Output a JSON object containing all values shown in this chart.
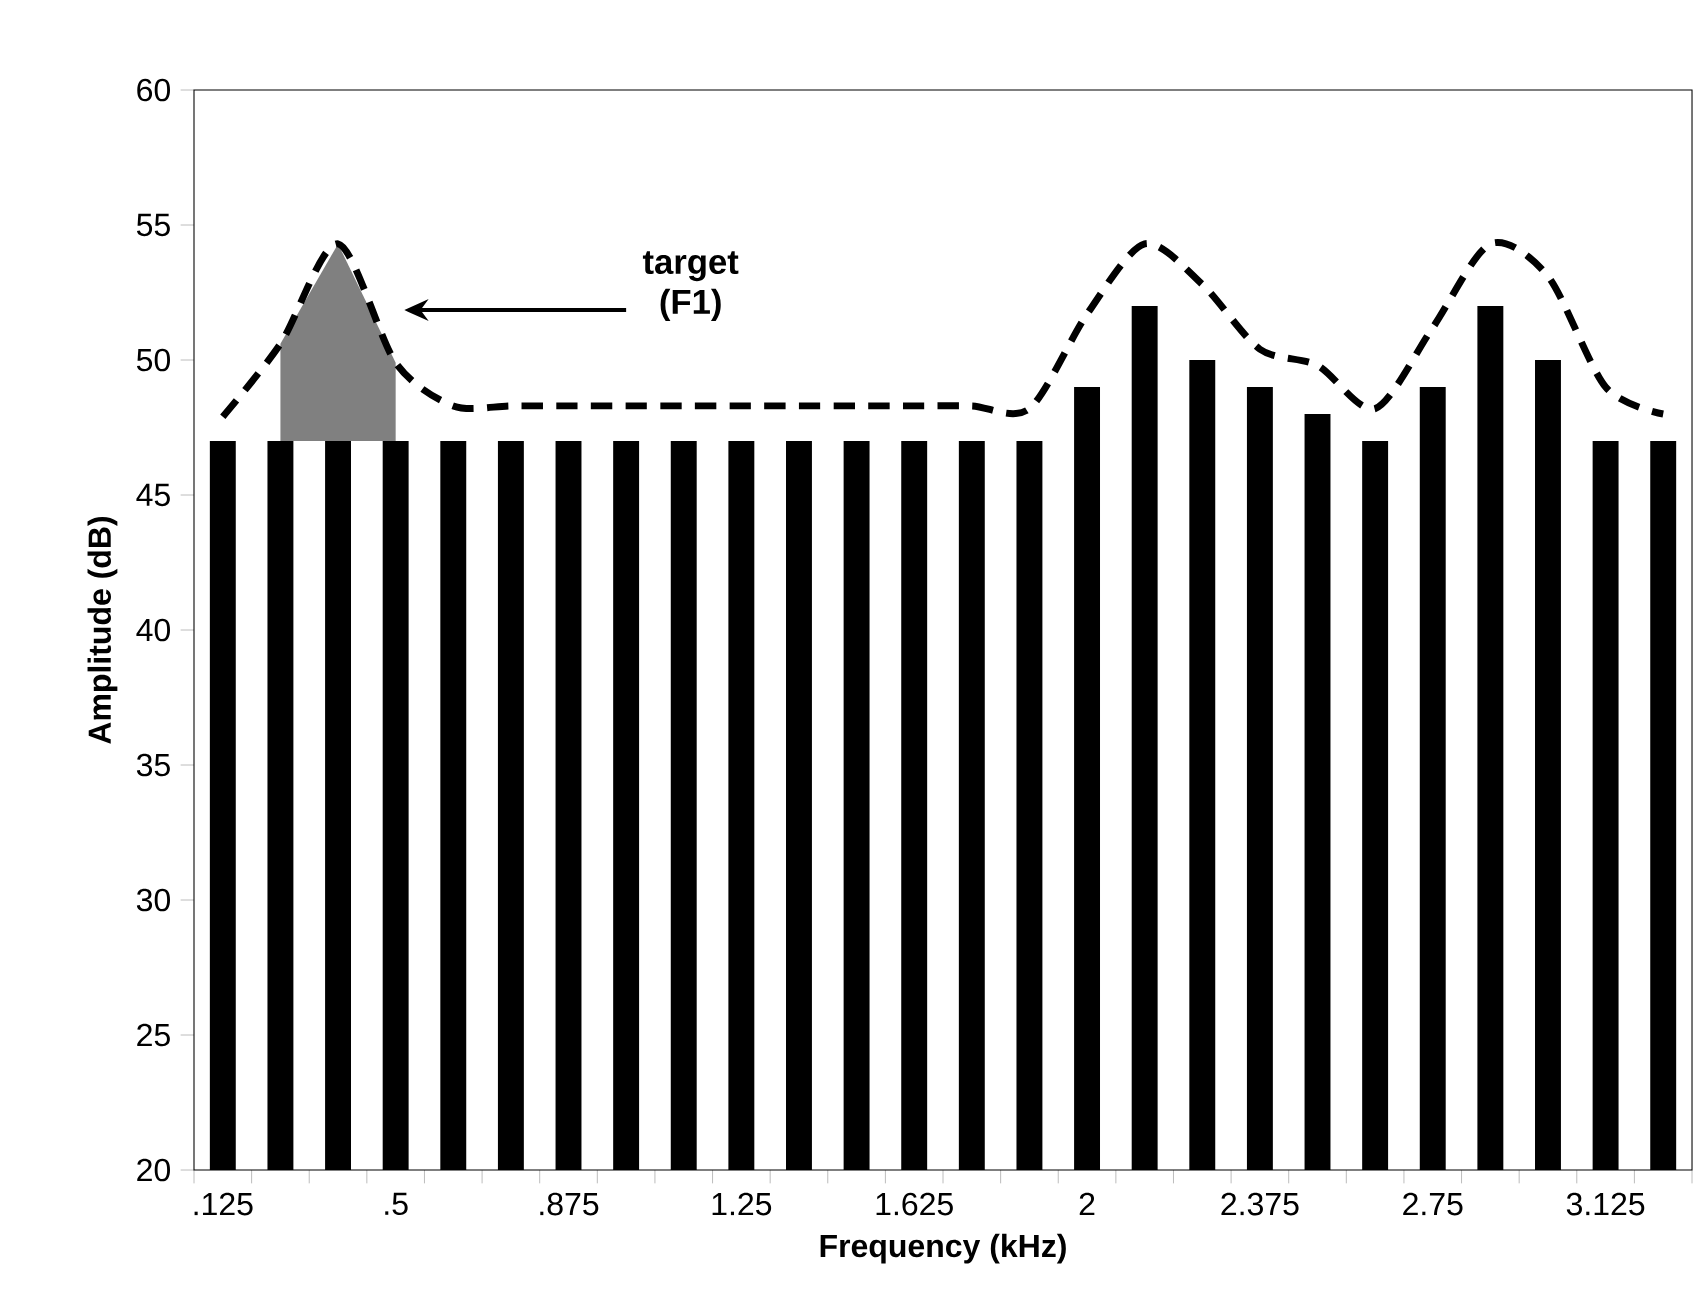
{
  "chart_data": {
    "type": "bar",
    "xlabel": "Frequency (kHz)",
    "ylabel": "Amplitude (dB)",
    "categories": [
      ".125",
      null,
      null,
      ".5",
      null,
      null,
      ".875",
      null,
      null,
      "1.25",
      null,
      null,
      "1.625",
      null,
      null,
      "2",
      null,
      null,
      "2.375",
      null,
      null,
      "2.75",
      null,
      null,
      "3.125",
      null
    ],
    "series": [
      {
        "color": "#000000",
        "values": [
          47,
          47,
          47,
          47,
          47,
          47,
          47,
          47,
          47,
          47,
          47,
          47,
          47,
          47,
          47,
          49,
          52,
          50,
          49,
          48,
          47,
          49,
          52,
          50,
          47,
          47
        ]
      },
      {
        "type": "line",
        "color": "#000000",
        "line_style": "dashed",
        "values": [
          47.9,
          50.6,
          54.3,
          49.9,
          48.3,
          48.3,
          48.3,
          48.3,
          48.3,
          48.3,
          48.3,
          48.3,
          48.3,
          48.3,
          48.2,
          51.7,
          54.3,
          52.8,
          50.4,
          49.8,
          48.2,
          51.2,
          54.3,
          53.1,
          49.0,
          48.0
        ],
        "lower": [
          null,
          47,
          47,
          47,
          null,
          null,
          null,
          null,
          null,
          null,
          null,
          null,
          null,
          null,
          null,
          null,
          null,
          null,
          null,
          null,
          null,
          null,
          null,
          null,
          null,
          null
        ],
        "upper": [
          null,
          50.6,
          54.3,
          49.9,
          null,
          null,
          null,
          null,
          null,
          null,
          null,
          null,
          null,
          null,
          null,
          null,
          null,
          null,
          null,
          null,
          null,
          null,
          null,
          null,
          null,
          null
        ]
      }
    ],
    "ylim": [
      20,
      60
    ],
    "yticks": [
      20,
      25,
      30,
      35,
      40,
      45,
      50,
      55,
      60
    ],
    "grid": false,
    "annotations": [
      "target (F1)"
    ]
  }
}
